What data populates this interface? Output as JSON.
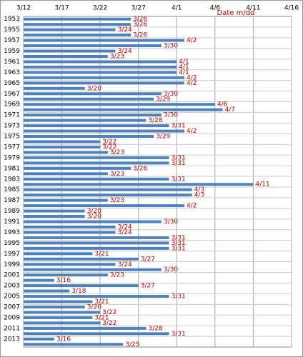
{
  "chart_data": {
    "type": "hbar",
    "x_axis_label": "Date m/dd",
    "categories": [
      "1953",
      null,
      "1955",
      null,
      "1957",
      null,
      "1959",
      null,
      "1961",
      null,
      "1963",
      null,
      "1965",
      null,
      "1967",
      null,
      "1969",
      null,
      "1971",
      null,
      "1973",
      null,
      "1975",
      null,
      "1977",
      null,
      "1979",
      null,
      "1981",
      null,
      "1983",
      null,
      "1985",
      null,
      "1987",
      null,
      "1989",
      null,
      "1991",
      null,
      "1993",
      null,
      "1995",
      null,
      "1997",
      null,
      "1999",
      null,
      "2001",
      null,
      "2003",
      null,
      "2005",
      null,
      "2007",
      null,
      "2009",
      null,
      "2011",
      null,
      "2013",
      null
    ],
    "values": [
      85,
      85,
      83,
      85,
      92,
      89,
      83,
      82,
      91,
      91,
      91,
      92,
      92,
      79,
      89,
      88,
      96,
      97,
      89,
      87,
      90,
      92,
      88,
      81,
      81,
      82,
      90,
      90,
      85,
      82,
      90,
      101,
      93,
      93,
      82,
      92,
      79,
      79,
      89,
      83,
      83,
      90,
      90,
      90,
      80,
      86,
      83,
      89,
      82,
      75,
      86,
      77,
      90,
      80,
      79,
      81,
      80,
      81,
      87,
      90,
      75,
      84
    ],
    "value_labels": [
      "3/26",
      "3/26",
      "3/24",
      "3/26",
      "4/2",
      "3/30",
      "3/24",
      "3/23",
      "4/1",
      "4/1",
      "4/1",
      "4/2",
      "4/2",
      "3/20",
      "3/30",
      "3/29",
      "4/6",
      "4/7",
      "3/30",
      "3/28",
      "3/31",
      "4/2",
      "3/29",
      "3/22",
      "3/22",
      "3/23",
      "3/31",
      "3/31",
      "3/26",
      "3/23",
      "3/31",
      "4/11",
      "4/3",
      "4/3",
      "3/23",
      "4/2",
      "3/20",
      "3/20",
      "3/30",
      "3/24",
      "3/24",
      "3/31",
      "3/31",
      "3/31",
      "3/21",
      "3/27",
      "3/24",
      "3/30",
      "3/23",
      "3/16",
      "3/27",
      "3/18",
      "3/31",
      "3/21",
      "3/20",
      "3/22",
      "3/21",
      "3/22",
      "3/28",
      "3/31",
      "3/16",
      "3/25"
    ],
    "color": "#4f81bd",
    "label_color": "#c00000",
    "xlim": [
      71,
      106
    ],
    "xticks": [
      {
        "value": 71,
        "label": "3/12"
      },
      {
        "value": 76,
        "label": "3/17"
      },
      {
        "value": 81,
        "label": "3/22"
      },
      {
        "value": 86,
        "label": "3/27"
      },
      {
        "value": 91,
        "label": "4/1"
      },
      {
        "value": 96,
        "label": "4/6"
      },
      {
        "value": 101,
        "label": "4/11"
      },
      {
        "value": 106,
        "label": "4/16"
      }
    ],
    "grid": true
  }
}
